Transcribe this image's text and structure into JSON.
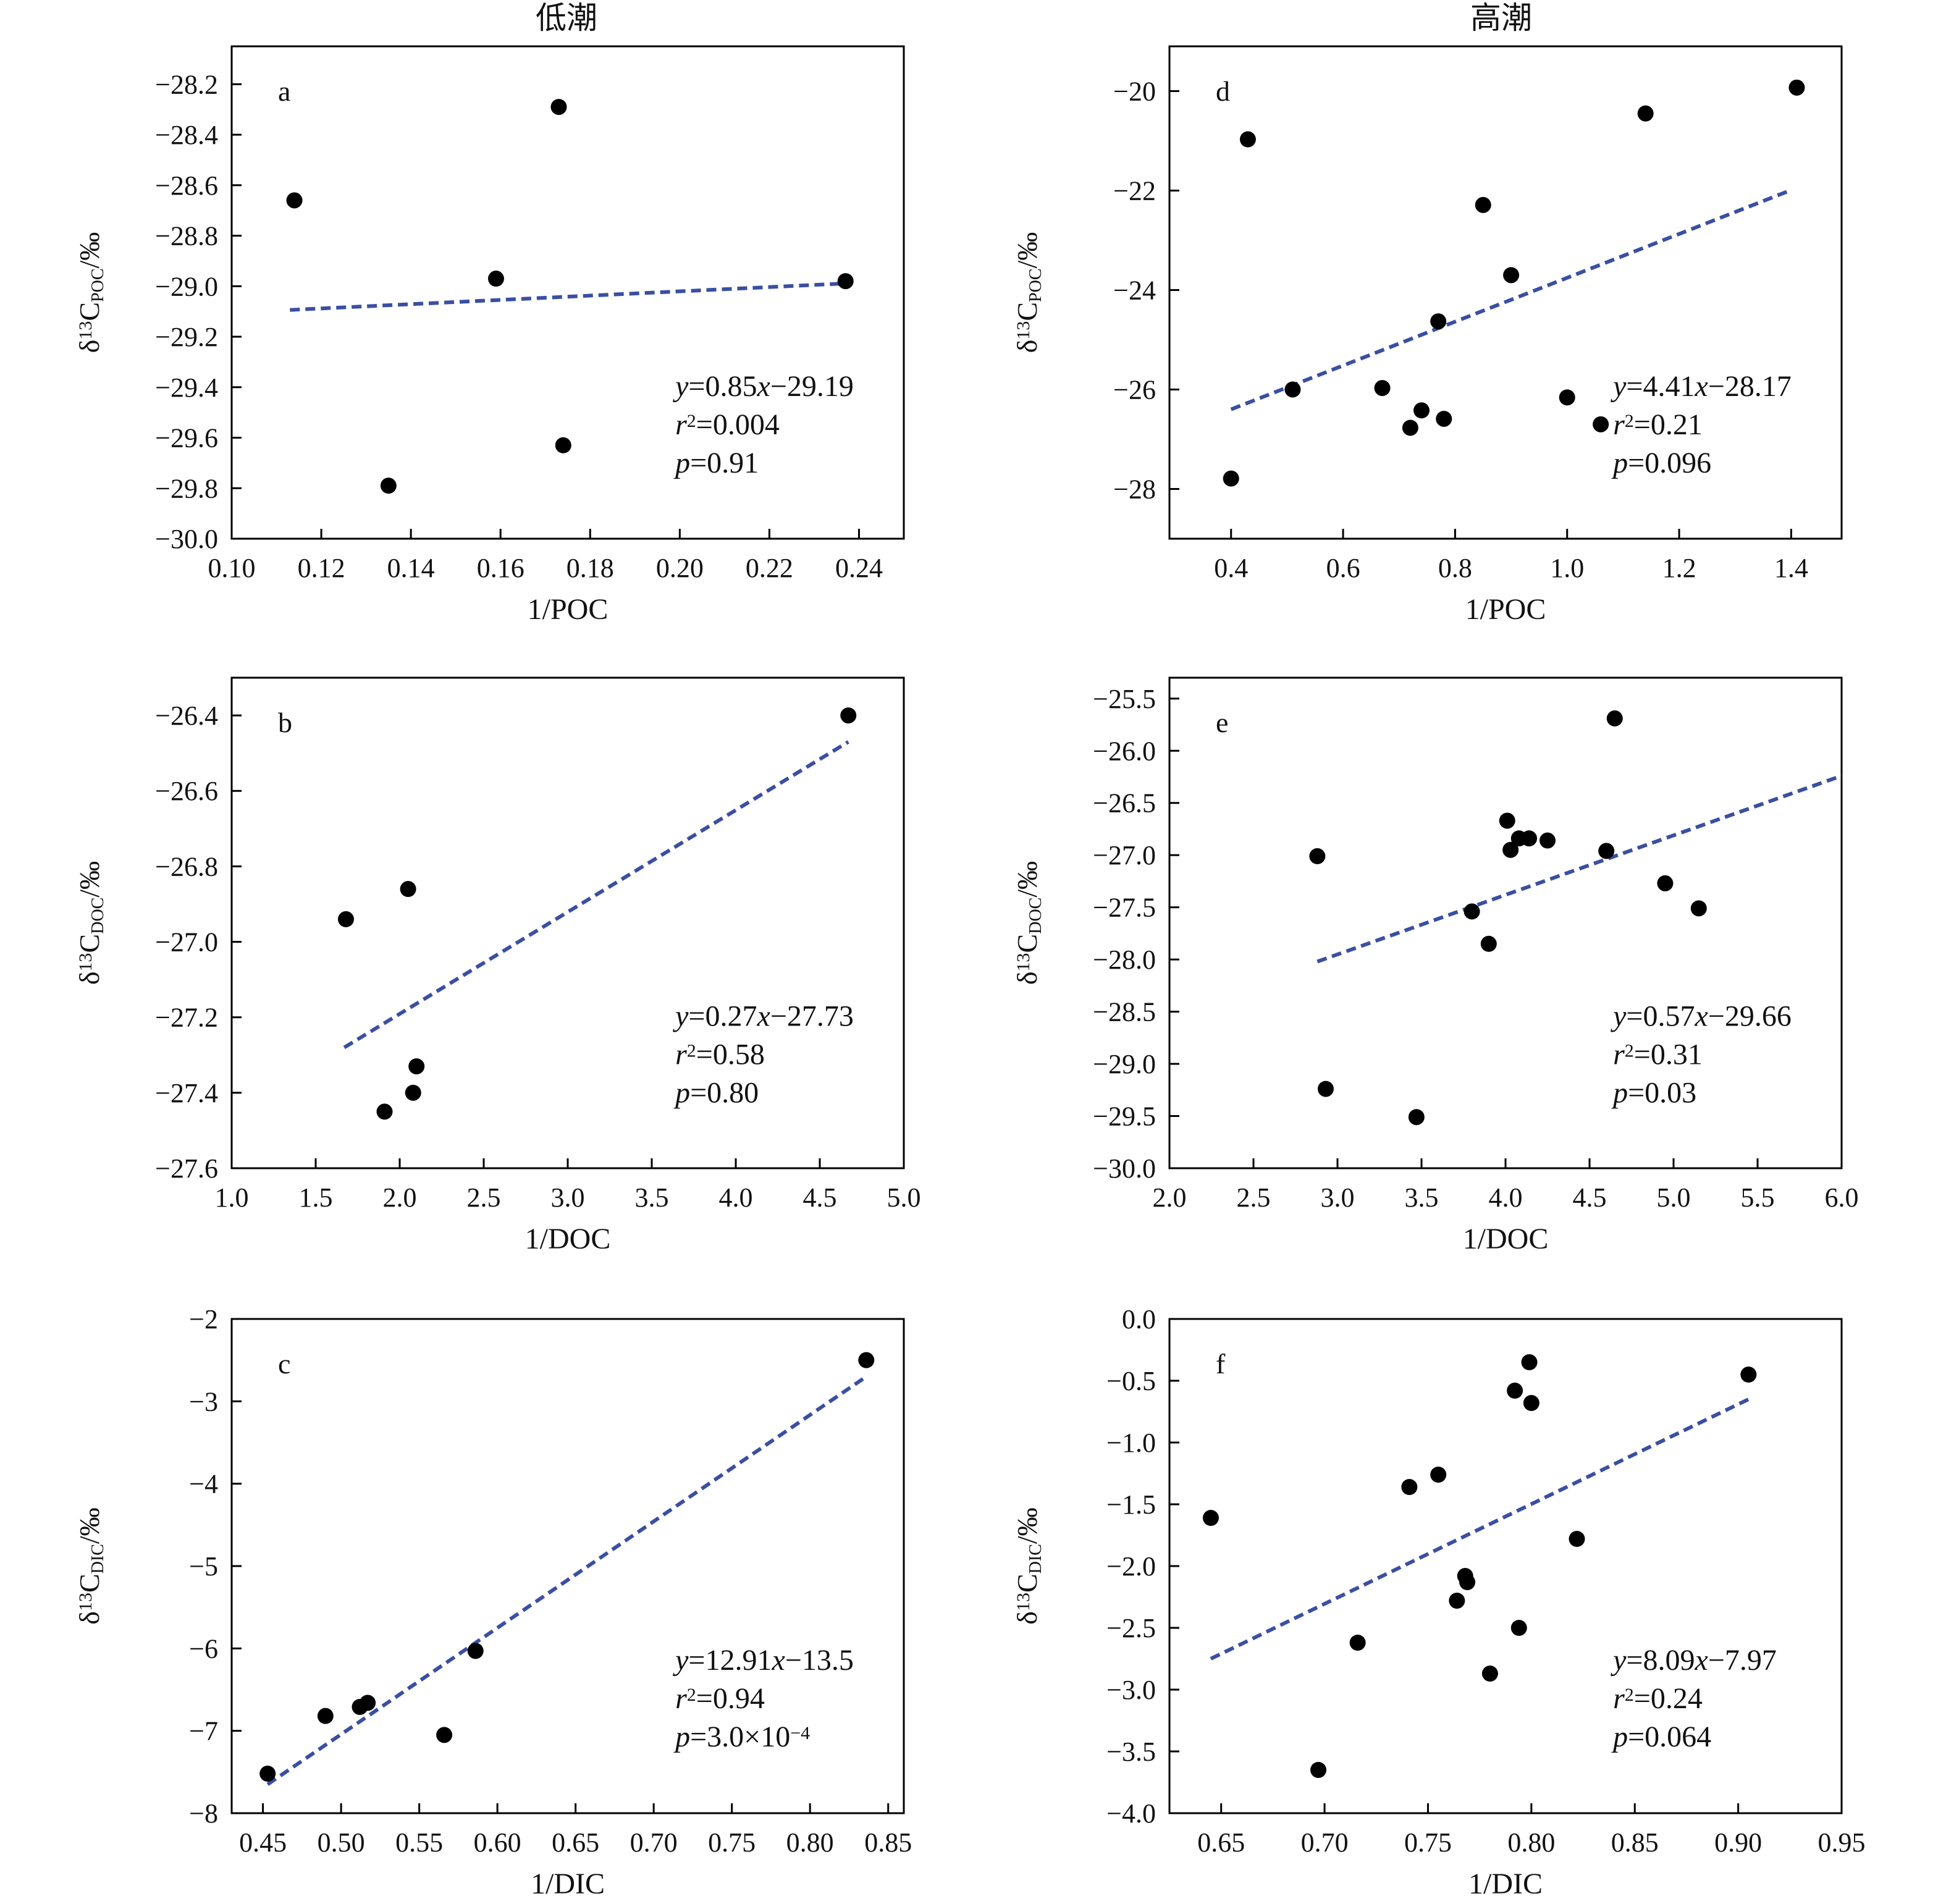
{
  "column_titles": [
    "低潮",
    "高潮"
  ],
  "colors": {
    "fit": "#3a4fa3",
    "point": "#000000",
    "axis": "#000000"
  },
  "chart_data": [
    {
      "type": "scatter",
      "panel": "a",
      "col": 0,
      "row": 0,
      "xlabel": "1/POC",
      "ylabel": "δ13C POC /‰",
      "ylabel_parts": {
        "delta": "δ",
        "sup": "13",
        "base": "C",
        "sub": "POC",
        "unit": "/‰"
      },
      "xlim": [
        0.1,
        0.25
      ],
      "ylim": [
        -30.0,
        -28.05
      ],
      "xticks": [
        "0.10",
        "0.12",
        "0.14",
        "0.16",
        "0.18",
        "0.20",
        "0.22",
        "0.24"
      ],
      "yticks": [
        "−30.0",
        "−29.8",
        "−29.6",
        "−29.4",
        "−29.2",
        "−29.0",
        "−28.8",
        "−28.6",
        "−28.4",
        "−28.2"
      ],
      "x": [
        0.114,
        0.135,
        0.159,
        0.173,
        0.174,
        0.237
      ],
      "y": [
        -28.66,
        -29.79,
        -28.97,
        -28.29,
        -29.63,
        -28.98
      ],
      "fit": {
        "x": [
          0.113,
          0.237
        ],
        "y": [
          -29.094,
          -28.989
        ]
      },
      "equation": {
        "y": "y",
        "eq": "=0.85",
        "x": "x",
        "rest": "−29.19"
      },
      "r2": {
        "r": "r",
        "sup": "2",
        "val": "=0.004"
      },
      "p": {
        "p": "p",
        "val": "=0.91"
      }
    },
    {
      "type": "scatter",
      "panel": "b",
      "col": 0,
      "row": 1,
      "xlabel": "1/DOC",
      "ylabel": "δ13C DOC /‰",
      "ylabel_parts": {
        "delta": "δ",
        "sup": "13",
        "base": "C",
        "sub": "DOC",
        "unit": "/‰"
      },
      "xlim": [
        1.0,
        5.0
      ],
      "ylim": [
        -27.6,
        -26.3
      ],
      "xticks": [
        "1.0",
        "1.5",
        "2.0",
        "2.5",
        "3.0",
        "3.5",
        "4.0",
        "4.5",
        "5.0"
      ],
      "yticks": [
        "−27.6",
        "−27.4",
        "−27.2",
        "−27.0",
        "−26.8",
        "−26.6",
        "−26.4"
      ],
      "x": [
        1.68,
        1.91,
        2.05,
        2.08,
        2.1,
        4.67
      ],
      "y": [
        -26.94,
        -27.45,
        -26.86,
        -27.4,
        -27.33,
        -26.4
      ],
      "fit": {
        "x": [
          1.67,
          4.67
        ],
        "y": [
          -27.28,
          -26.47
        ]
      },
      "equation": {
        "y": "y",
        "eq": "=0.27",
        "x": "x",
        "rest": "−27.73"
      },
      "r2": {
        "r": "r",
        "sup": "2",
        "val": "=0.58"
      },
      "p": {
        "p": "p",
        "val": "=0.80"
      }
    },
    {
      "type": "scatter",
      "panel": "c",
      "col": 0,
      "row": 2,
      "xlabel": "1/DIC",
      "ylabel": "δ13C DIC /‰",
      "ylabel_parts": {
        "delta": "δ",
        "sup": "13",
        "base": "C",
        "sub": "DIC",
        "unit": "/‰"
      },
      "xlim": [
        0.43,
        0.86
      ],
      "ylim": [
        -8,
        -2
      ],
      "xticks": [
        "0.45",
        "0.50",
        "0.55",
        "0.60",
        "0.65",
        "0.70",
        "0.75",
        "0.80",
        "0.85"
      ],
      "yticks": [
        "−8",
        "−7",
        "−6",
        "−5",
        "−4",
        "−3",
        "−2"
      ],
      "x": [
        0.453,
        0.49,
        0.512,
        0.517,
        0.566,
        0.586,
        0.836
      ],
      "y": [
        -7.52,
        -6.82,
        -6.71,
        -6.66,
        -7.05,
        -6.03,
        -2.5
      ],
      "fit": {
        "x": [
          0.453,
          0.836
        ],
        "y": [
          -7.65,
          -2.7
        ]
      },
      "equation": {
        "y": "y",
        "eq": "=12.91",
        "x": "x",
        "rest": "−13.5"
      },
      "r2": {
        "r": "r",
        "sup": "2",
        "val": "=0.94"
      },
      "p": {
        "p": "p",
        "val": "=3.0×10",
        "sup": "−4"
      }
    },
    {
      "type": "scatter",
      "panel": "d",
      "col": 1,
      "row": 0,
      "xlabel": "1/POC",
      "ylabel": "δ13C POC /‰",
      "ylabel_parts": {
        "delta": "δ",
        "sup": "13",
        "base": "C",
        "sub": "POC",
        "unit": "/‰"
      },
      "xlim": [
        0.29,
        1.49
      ],
      "ylim": [
        -29.0,
        -19.1
      ],
      "xticks": [
        "0.4",
        "0.6",
        "0.8",
        "1.0",
        "1.2",
        "1.4"
      ],
      "yticks": [
        "−28",
        "−26",
        "−24",
        "−22",
        "−20"
      ],
      "x": [
        0.4,
        0.43,
        0.51,
        0.67,
        0.72,
        0.74,
        0.77,
        0.78,
        0.85,
        0.9,
        1.0,
        1.06,
        1.14,
        1.41
      ],
      "y": [
        -27.79,
        -20.97,
        -26.0,
        -25.97,
        -26.77,
        -26.42,
        -24.63,
        -26.59,
        -22.29,
        -23.7,
        -26.16,
        -26.7,
        -20.45,
        -19.93
      ],
      "fit": {
        "x": [
          0.4,
          1.4
        ],
        "y": [
          -26.4,
          -21.99
        ]
      },
      "equation": {
        "y": "y",
        "eq": "=4.41",
        "x": "x",
        "rest": "−28.17"
      },
      "r2": {
        "r": "r",
        "sup": "2",
        "val": "=0.21"
      },
      "p": {
        "p": "p",
        "val": "=0.096"
      }
    },
    {
      "type": "scatter",
      "panel": "e",
      "col": 1,
      "row": 1,
      "xlabel": "1/DOC",
      "ylabel": "δ13C DOC /‰",
      "ylabel_parts": {
        "delta": "δ",
        "sup": "13",
        "base": "C",
        "sub": "DOC",
        "unit": "/‰"
      },
      "xlim": [
        2.0,
        6.0
      ],
      "ylim": [
        -30.0,
        -25.3
      ],
      "xticks": [
        "2.0",
        "2.5",
        "3.0",
        "3.5",
        "4.0",
        "4.5",
        "5.0",
        "5.5",
        "6.0"
      ],
      "yticks": [
        "−30.0",
        "−29.5",
        "−29.0",
        "−28.5",
        "−28.0",
        "−27.5",
        "−27.0",
        "−26.5",
        "−26.0",
        "−25.5"
      ],
      "x": [
        2.88,
        2.93,
        3.47,
        3.8,
        3.9,
        4.01,
        4.03,
        4.08,
        4.14,
        4.25,
        4.6,
        4.65,
        4.95,
        5.15
      ],
      "y": [
        -27.01,
        -29.24,
        -29.51,
        -27.54,
        -27.85,
        -26.67,
        -26.95,
        -26.84,
        -26.84,
        -26.86,
        -26.96,
        -25.69,
        -27.27,
        -27.51
      ],
      "fit": {
        "x": [
          2.88,
          6.0
        ],
        "y": [
          -28.02,
          -26.24
        ]
      },
      "equation": {
        "y": "y",
        "eq": "=0.57",
        "x": "x",
        "rest": "−29.66"
      },
      "r2": {
        "r": "r",
        "sup": "2",
        "val": "=0.31"
      },
      "p": {
        "p": "p",
        "val": "=0.03"
      }
    },
    {
      "type": "scatter",
      "panel": "f",
      "col": 1,
      "row": 2,
      "xlabel": "1/DIC",
      "ylabel": "δ13C DIC /‰",
      "ylabel_parts": {
        "delta": "δ",
        "sup": "13",
        "base": "C",
        "sub": "DIC",
        "unit": "/‰"
      },
      "xlim": [
        0.625,
        0.95
      ],
      "ylim": [
        -4.0,
        0.0
      ],
      "xticks": [
        "0.65",
        "0.70",
        "0.75",
        "0.80",
        "0.85",
        "0.90",
        "0.95"
      ],
      "yticks": [
        "−4.0",
        "−3.5",
        "−3.0",
        "−2.5",
        "−2.0",
        "−1.5",
        "−1.0",
        "−0.5",
        "0.0"
      ],
      "x": [
        0.645,
        0.697,
        0.716,
        0.741,
        0.755,
        0.764,
        0.768,
        0.769,
        0.78,
        0.792,
        0.794,
        0.799,
        0.8,
        0.822,
        0.905
      ],
      "y": [
        -1.61,
        -3.65,
        -2.62,
        -1.36,
        -1.26,
        -2.28,
        -2.08,
        -2.13,
        -2.87,
        -0.58,
        -2.5,
        -0.35,
        -0.68,
        -1.78,
        -0.45
      ],
      "fit": {
        "x": [
          0.645,
          0.905
        ],
        "y": [
          -2.75,
          -0.65
        ]
      },
      "equation": {
        "y": "y",
        "eq": "=8.09",
        "x": "x",
        "rest": "−7.97"
      },
      "r2": {
        "r": "r",
        "sup": "2",
        "val": "=0.24"
      },
      "p": {
        "p": "p",
        "val": "=0.064"
      }
    }
  ]
}
